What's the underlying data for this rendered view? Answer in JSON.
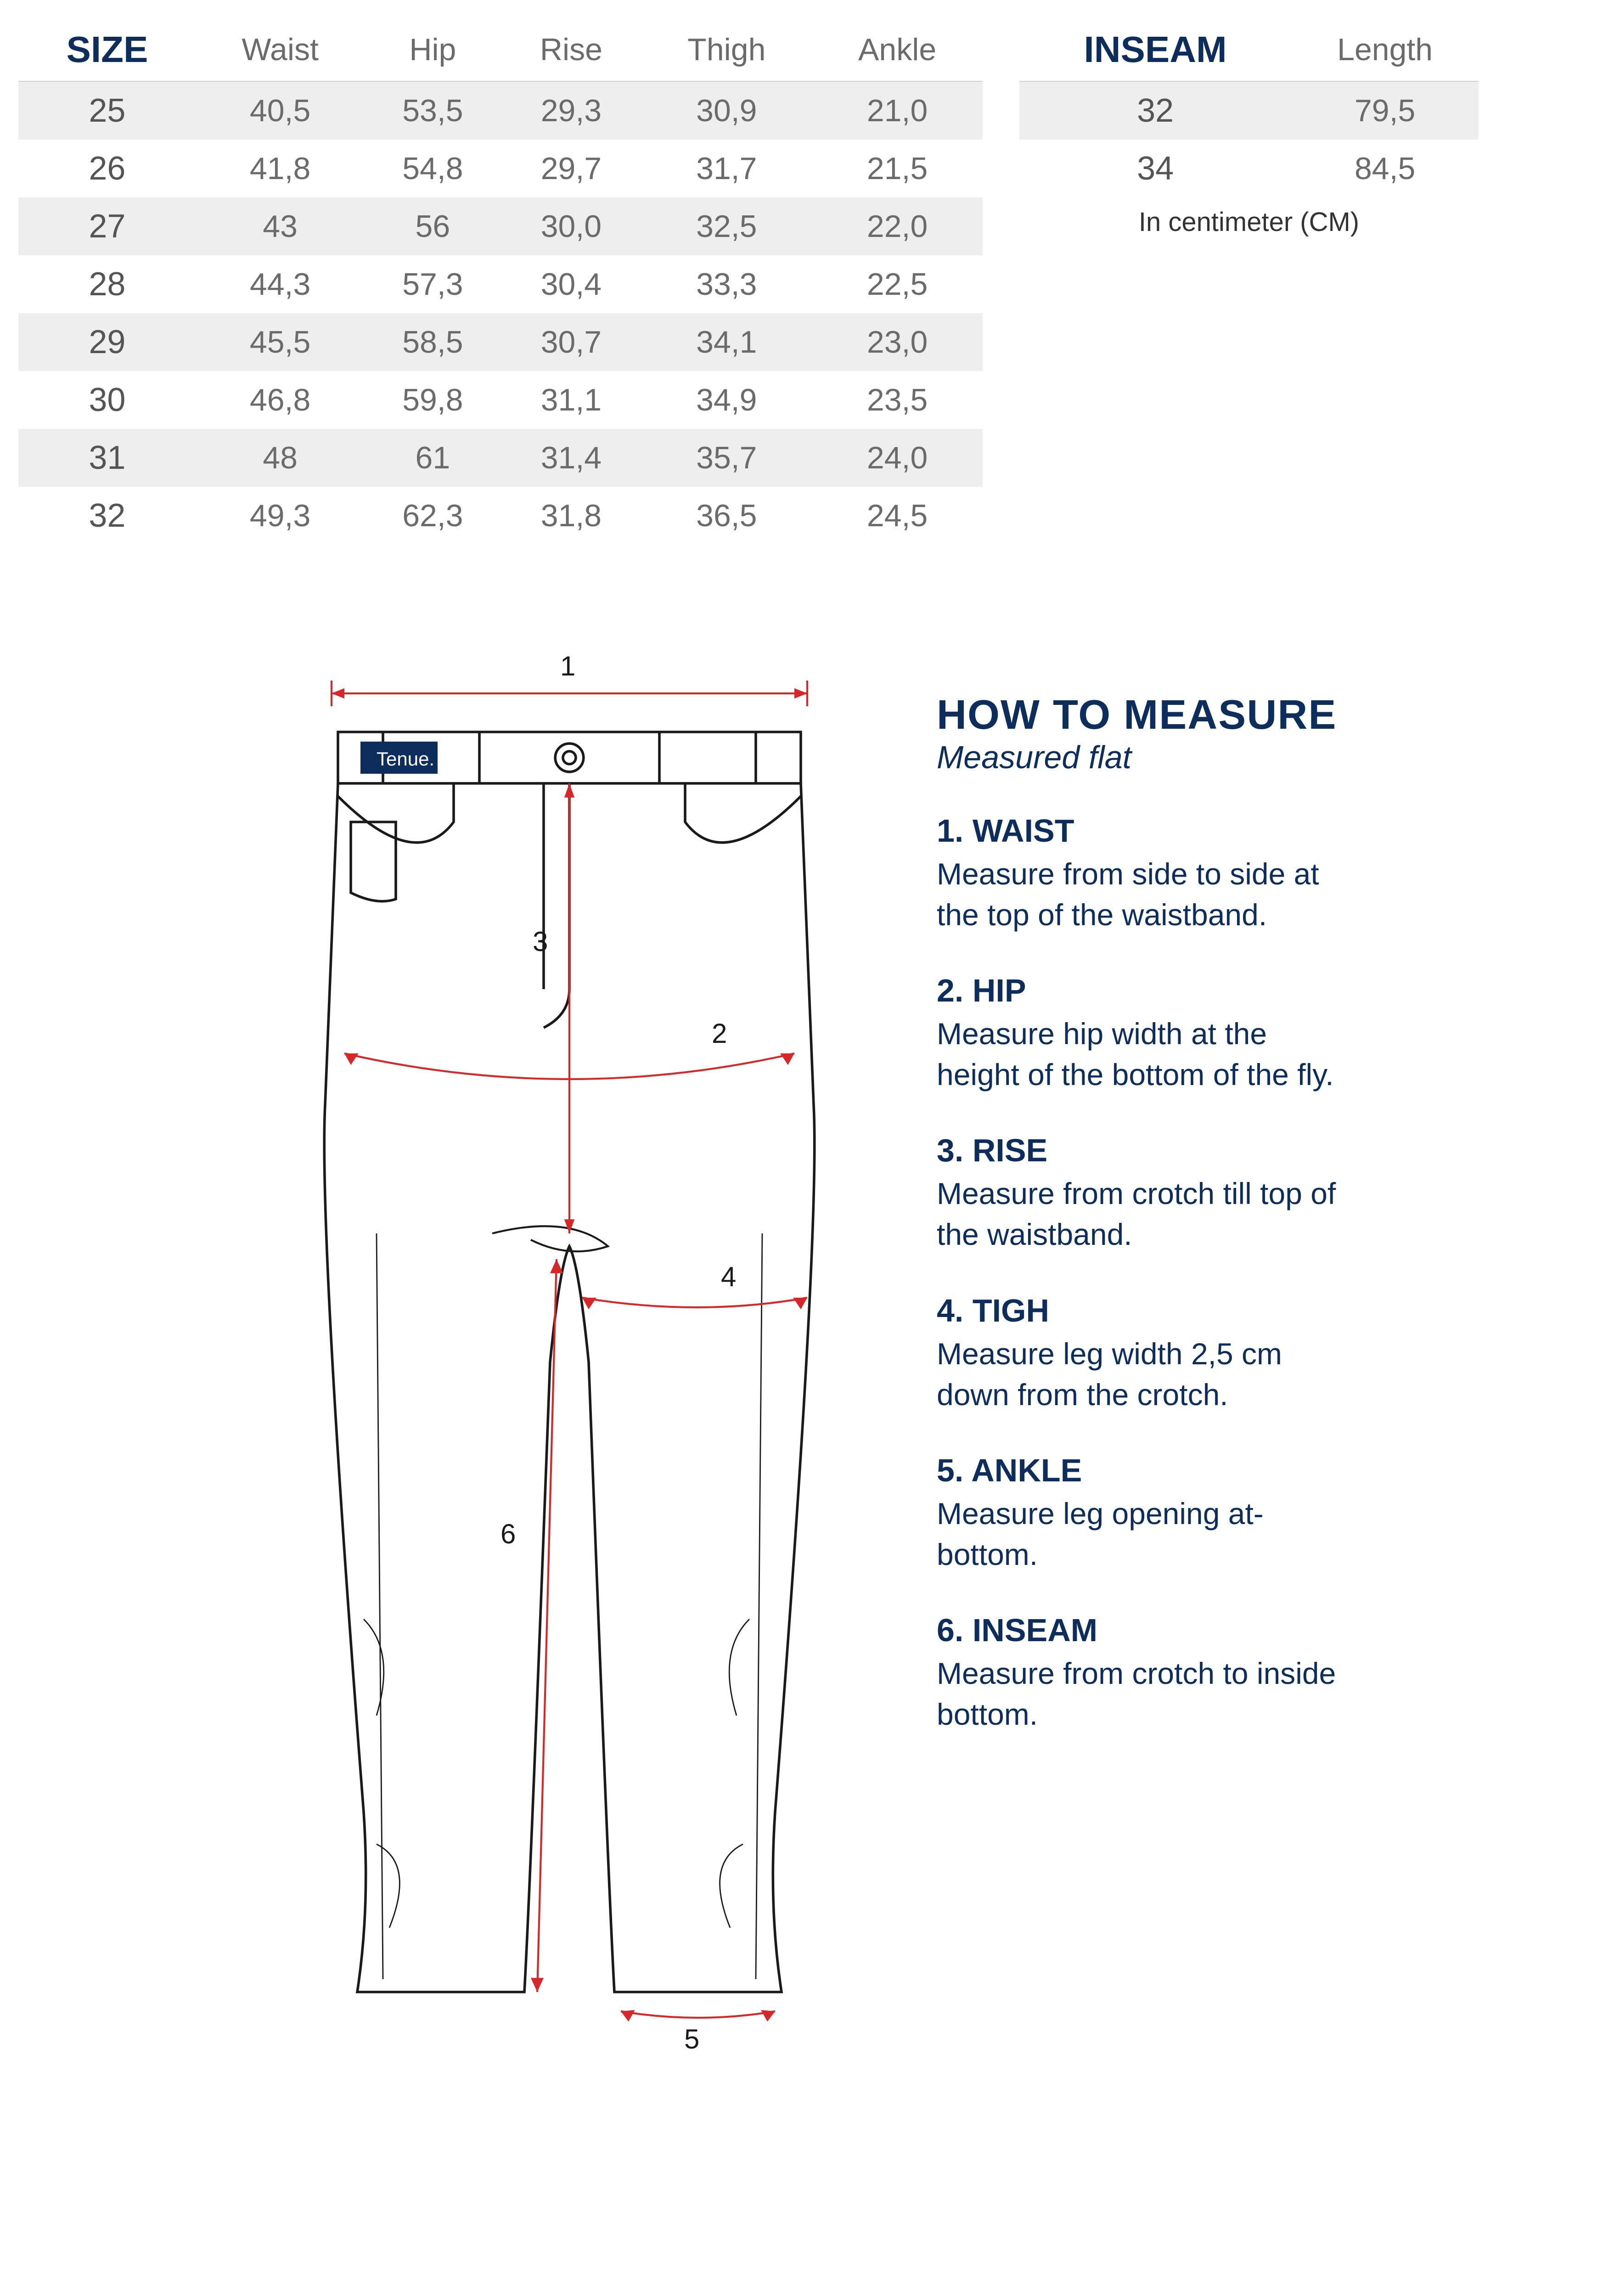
{
  "colors": {
    "accent": "#0d2d5c",
    "text_muted": "#6b6b6b",
    "row_alt_bg": "#eeeeee",
    "row_bg": "#ffffff",
    "border": "#d0d0d0",
    "arrow": "#d62828",
    "pants_stroke": "#1a1a1a",
    "tag_bg": "#0d2d5c"
  },
  "size_table": {
    "columns": [
      "SIZE",
      "Waist",
      "Hip",
      "Rise",
      "Thigh",
      "Ankle"
    ],
    "rows": [
      [
        "25",
        "40,5",
        "53,5",
        "29,3",
        "30,9",
        "21,0"
      ],
      [
        "26",
        "41,8",
        "54,8",
        "29,7",
        "31,7",
        "21,5"
      ],
      [
        "27",
        "43",
        "56",
        "30,0",
        "32,5",
        "22,0"
      ],
      [
        "28",
        "44,3",
        "57,3",
        "30,4",
        "33,3",
        "22,5"
      ],
      [
        "29",
        "45,5",
        "58,5",
        "30,7",
        "34,1",
        "23,0"
      ],
      [
        "30",
        "46,8",
        "59,8",
        "31,1",
        "34,9",
        "23,5"
      ],
      [
        "31",
        "48",
        "61",
        "31,4",
        "35,7",
        "24,0"
      ],
      [
        "32",
        "49,3",
        "62,3",
        "31,8",
        "36,5",
        "24,5"
      ]
    ]
  },
  "inseam_table": {
    "columns": [
      "INSEAM",
      "Length"
    ],
    "rows": [
      [
        "32",
        "79,5"
      ],
      [
        "34",
        "84,5"
      ]
    ],
    "unit_note": "In centimeter (CM)"
  },
  "howto": {
    "title": "HOW TO MEASURE",
    "subtitle": "Measured flat",
    "items": [
      {
        "title": "1. WAIST",
        "desc": "Measure from side to side at the top of the waistband."
      },
      {
        "title": "2. HIP",
        "desc": "Measure hip width at the height of the bottom of the fly."
      },
      {
        "title": "3. RISE",
        "desc": "Measure from crotch till top of the waistband."
      },
      {
        "title": "4. TIGH",
        "desc": "Measure leg width 2,5 cm down from the crotch."
      },
      {
        "title": "5. ANKLE",
        "desc": "Measure leg opening at-bottom."
      },
      {
        "title": "6. INSEAM",
        "desc": "Measure from crotch to inside bottom."
      }
    ]
  },
  "diagram": {
    "tag_text": "Tenue.",
    "labels": [
      "1",
      "2",
      "3",
      "4",
      "5",
      "6"
    ]
  }
}
